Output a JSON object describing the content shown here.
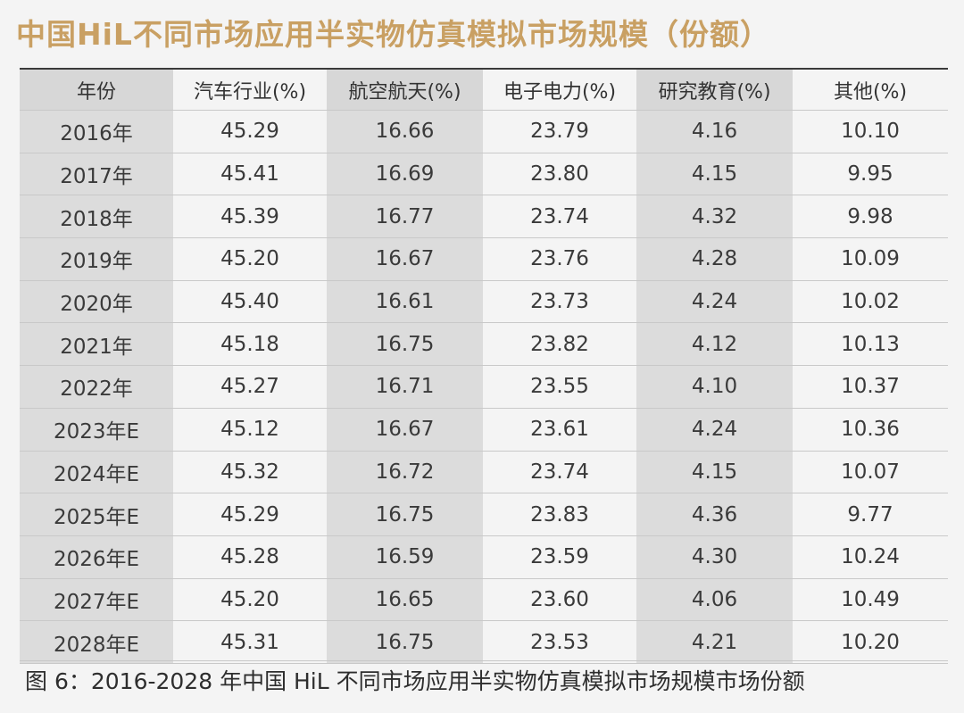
{
  "title": "中国HiL不同市场应用半实物仿真模拟市场规模（份额）",
  "caption": "图 6：2016-2028 年中国 HiL 不同市场应用半实物仿真模拟市场规模市场份额",
  "chart_data": {
    "type": "table",
    "title": "中国HiL不同市场应用半实物仿真模拟市场规模（份额）",
    "columns": [
      "年份",
      "汽车行业(%)",
      "航空航天(%)",
      "电子电力(%)",
      "研究教育(%)",
      "其他(%)"
    ],
    "rows": [
      [
        "2016年",
        "45.29",
        "16.66",
        "23.79",
        "4.16",
        "10.10"
      ],
      [
        "2017年",
        "45.41",
        "16.69",
        "23.80",
        "4.15",
        "9.95"
      ],
      [
        "2018年",
        "45.39",
        "16.77",
        "23.74",
        "4.32",
        "9.98"
      ],
      [
        "2019年",
        "45.20",
        "16.67",
        "23.76",
        "4.28",
        "10.09"
      ],
      [
        "2020年",
        "45.40",
        "16.61",
        "23.73",
        "4.24",
        "10.02"
      ],
      [
        "2021年",
        "45.18",
        "16.75",
        "23.82",
        "4.12",
        "10.13"
      ],
      [
        "2022年",
        "45.27",
        "16.71",
        "23.55",
        "4.10",
        "10.37"
      ],
      [
        "2023年E",
        "45.12",
        "16.67",
        "23.61",
        "4.24",
        "10.36"
      ],
      [
        "2024年E",
        "45.32",
        "16.72",
        "23.74",
        "4.15",
        "10.07"
      ],
      [
        "2025年E",
        "45.29",
        "16.75",
        "23.83",
        "4.36",
        "9.77"
      ],
      [
        "2026年E",
        "45.28",
        "16.59",
        "23.59",
        "4.30",
        "10.24"
      ],
      [
        "2027年E",
        "45.20",
        "16.65",
        "23.60",
        "4.06",
        "10.49"
      ],
      [
        "2028年E",
        "45.31",
        "16.75",
        "23.53",
        "4.21",
        "10.20"
      ]
    ]
  },
  "colors": {
    "title": "#c9a063",
    "header_shade": "#d7d7d7",
    "column_shade": "#dcdcdc",
    "background": "#f4f4f4"
  }
}
